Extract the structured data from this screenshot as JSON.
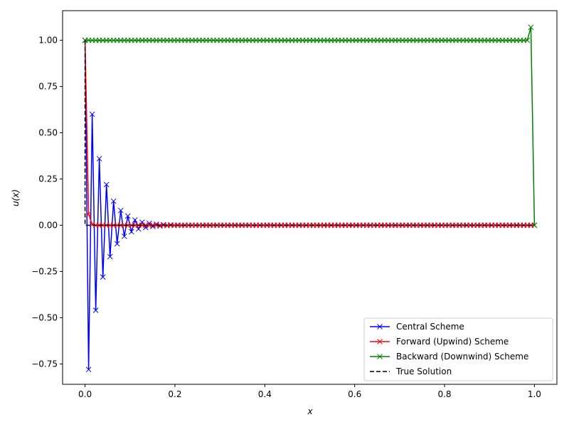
{
  "chart_data": {
    "type": "line",
    "title": "",
    "xlabel": "x",
    "ylabel": "u(x)",
    "xlim": [
      -0.05,
      1.05
    ],
    "ylim": [
      -0.86,
      1.16
    ],
    "x_ticks": [
      0.0,
      0.2,
      0.4,
      0.6,
      0.8,
      1.0
    ],
    "x_tick_labels": [
      "0.0",
      "0.2",
      "0.4",
      "0.6",
      "0.8",
      "1.0"
    ],
    "y_ticks": [
      -0.75,
      -0.5,
      -0.25,
      0.0,
      0.25,
      0.5,
      0.75,
      1.0
    ],
    "y_tick_labels": [
      "−0.75",
      "−0.50",
      "−0.25",
      "0.00",
      "0.25",
      "0.50",
      "0.75",
      "1.00"
    ],
    "grid": false,
    "legend_position": "lower-right",
    "series": [
      {
        "name": "Central Scheme",
        "color": "#0000ff",
        "marker": "x",
        "linestyle": "solid",
        "x": [
          0.0,
          0.0079,
          0.0159,
          0.0238,
          0.0317,
          0.0397,
          0.0476,
          0.0556,
          0.0635,
          0.0714,
          0.0794,
          0.0873,
          0.0952,
          0.1032,
          0.1111,
          0.119,
          0.127,
          0.1349,
          0.1429,
          0.1508,
          0.1587,
          0.1667,
          0.1746,
          0.1825,
          0.1905,
          0.1984,
          0.2063,
          0.2143,
          0.2222,
          0.2302,
          0.2381,
          0.246,
          0.254,
          0.2619,
          0.2698
        ],
        "y": [
          1.0,
          -0.78,
          0.6,
          -0.46,
          0.36,
          -0.28,
          0.22,
          -0.17,
          0.13,
          -0.1,
          0.08,
          -0.06,
          0.05,
          -0.035,
          0.028,
          -0.02,
          0.016,
          -0.012,
          0.01,
          -0.007,
          0.006,
          -0.004,
          0.003,
          -0.002,
          0.002,
          -0.001,
          0.001,
          -0.001,
          0.0,
          0.0,
          0.0,
          0.0,
          0.0,
          0.0,
          0.0
        ]
      },
      {
        "name": "Forward (Upwind) Scheme",
        "color": "#ff0000",
        "marker": "x",
        "linestyle": "solid",
        "x": [
          0.0,
          0.0079,
          0.0159,
          0.0238,
          0.0317
        ],
        "y": [
          1.0,
          0.06,
          0.004,
          0.0,
          0.0
        ],
        "x_end": 1.0,
        "tail_value": 0.0
      },
      {
        "name": "Backward (Downwind) Scheme",
        "color": "#008000",
        "marker": "x",
        "linestyle": "solid",
        "x": [
          0.0
        ],
        "y": [
          1.0
        ],
        "x_end": 0.9683,
        "tail_value": 1.0,
        "end_x": [
          0.9762,
          0.9841,
          0.9921,
          1.0
        ],
        "end_y": [
          1.0,
          1.0,
          1.07,
          0.0
        ]
      },
      {
        "name": "True Solution",
        "color": "#000000",
        "marker": "none",
        "linestyle": "dashed",
        "x": [
          0.0,
          0.0,
          1.0
        ],
        "y": [
          1.0,
          0.0,
          0.0
        ]
      }
    ],
    "marker_count": 127
  }
}
